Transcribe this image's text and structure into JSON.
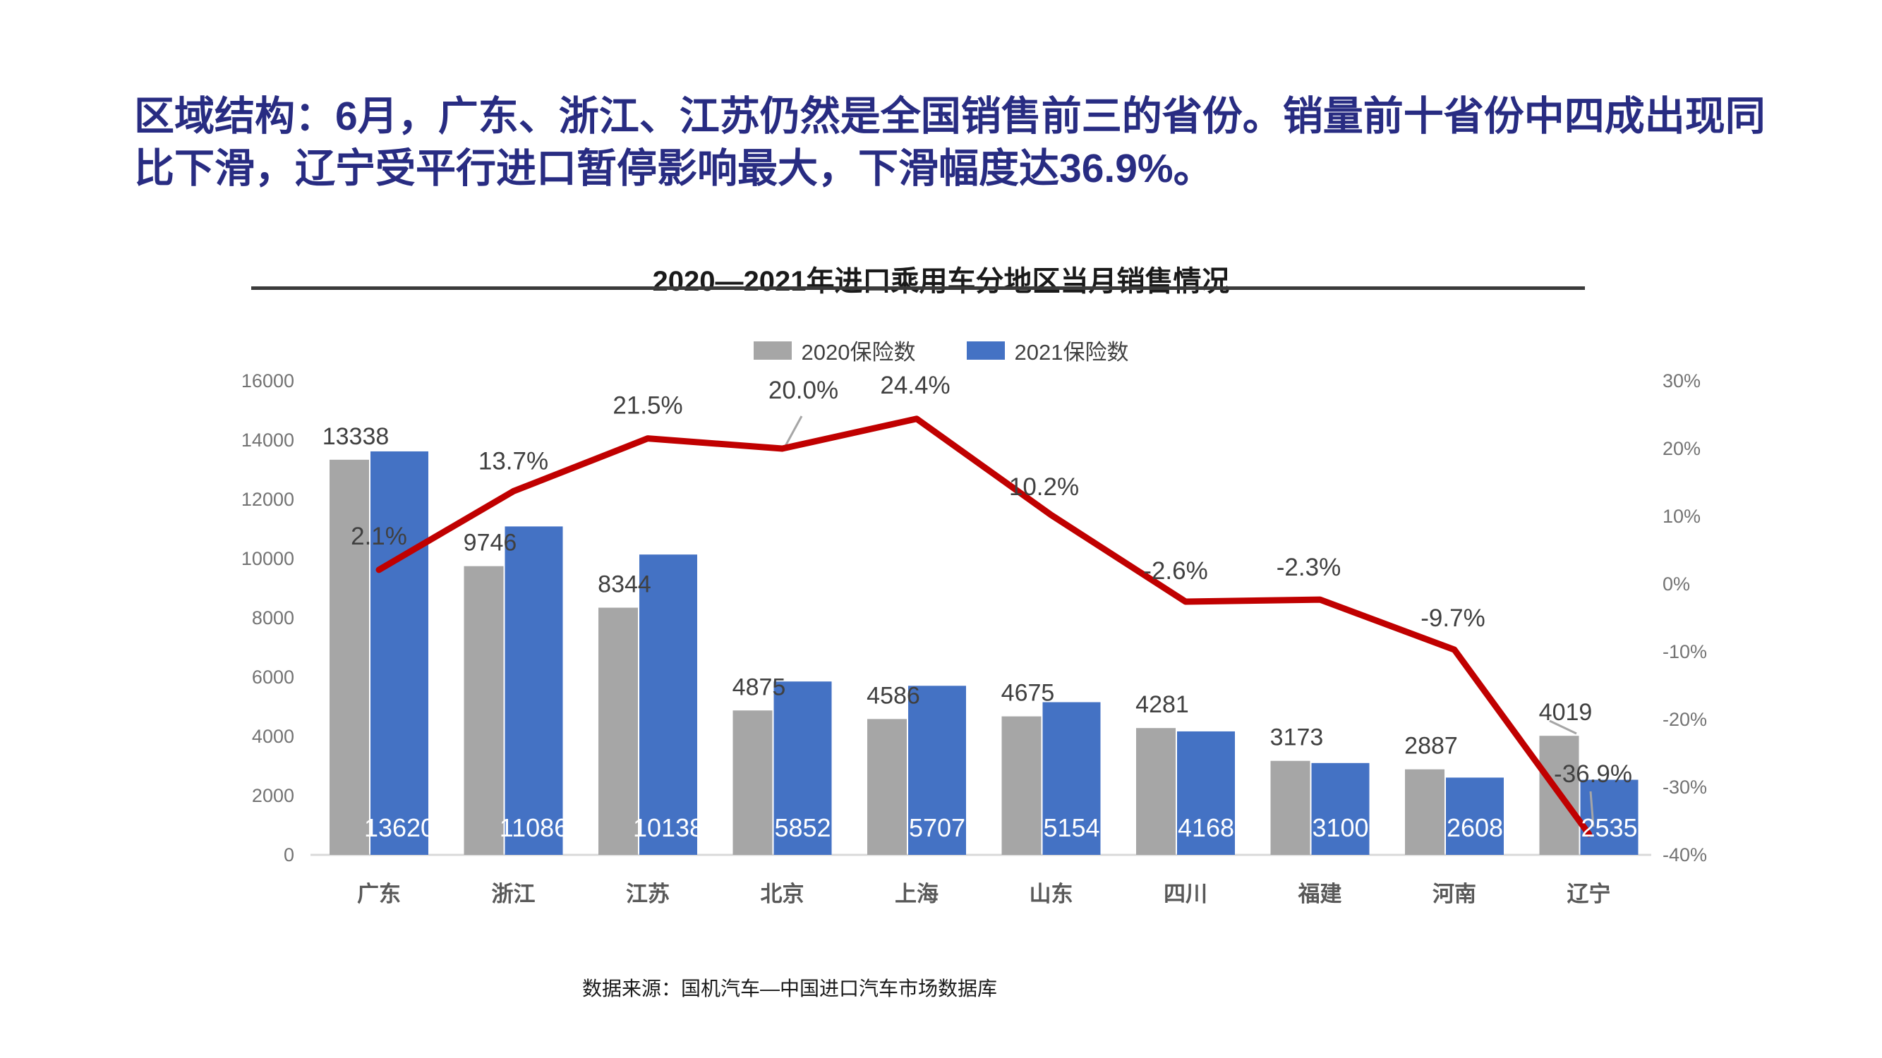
{
  "page": {
    "headline": "区域结构：6月，广东、浙江、江苏仍然是全国销售前三的省份。销量前十省份中四成出现同比下滑，辽宁受平行进口暂停影响最大，下滑幅度达36.9%。",
    "source_note": "数据来源：国机汽车—中国进口汽车市场数据库"
  },
  "chart_data": {
    "type": "combo-bar-line",
    "title": "2020—2021年进口乘用车分地区当月销售情况",
    "categories": [
      "广东",
      "浙江",
      "江苏",
      "北京",
      "上海",
      "山东",
      "四川",
      "福建",
      "河南",
      "辽宁"
    ],
    "series": [
      {
        "name": "2020保险数",
        "type": "bar",
        "color": "#A6A6A6",
        "values": [
          13338,
          9746,
          8344,
          4875,
          4586,
          4675,
          4281,
          3173,
          2887,
          4019
        ]
      },
      {
        "name": "2021保险数",
        "type": "bar",
        "color": "#4472C4",
        "values": [
          13620,
          11086,
          10138,
          5852,
          5707,
          5154,
          4168,
          3100,
          2608,
          2535
        ]
      },
      {
        "type": "line",
        "axis": "right",
        "color": "#C00000",
        "values_pct": [
          2.1,
          13.7,
          21.5,
          20.0,
          24.4,
          10.2,
          -2.6,
          -2.3,
          -9.7,
          -36.9
        ],
        "point_labels": [
          "2.1%",
          "13.7%",
          "21.5%",
          "20.0%",
          "24.4%",
          "10.2%",
          "-2.6%",
          "-2.3%",
          "-9.7%",
          "-36.9%"
        ]
      }
    ],
    "left_axis": {
      "min": 0,
      "max": 16000,
      "step": 2000,
      "tick_labels": [
        "0",
        "2000",
        "4000",
        "6000",
        "8000",
        "10000",
        "12000",
        "14000",
        "16000"
      ]
    },
    "right_axis": {
      "min": -40,
      "max": 30,
      "step": 10,
      "tick_labels": [
        "30%",
        "20%",
        "10%",
        "0%",
        "-10%",
        "-20%",
        "-30%",
        "-40%"
      ]
    },
    "legend": {
      "entries": [
        "2020保险数",
        "2021保险数"
      ],
      "position": "top"
    },
    "gridlines": false,
    "value_label_positions": {
      "series_2020": "above-gray-bar",
      "series_2021": "inside-blue-bar-base",
      "series_2021_text_color": "#FFFFFF"
    }
  },
  "colors": {
    "headline": "#282C82",
    "chart_title": "#1A1A1A",
    "axis_text": "#737373",
    "value_labels": "#404040",
    "pct_labels": "#404040",
    "category_labels": "#595959",
    "baseline": "#D9D9D9",
    "leader_lines": "#A6A6A6",
    "bar_2020": "#A6A6A6",
    "bar_2021": "#4472C4",
    "growth_line": "#C00000"
  }
}
